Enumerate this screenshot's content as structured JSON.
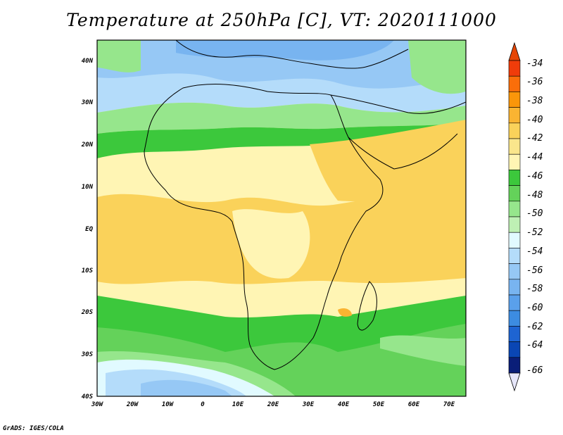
{
  "title": "Temperature at 250hPa [C], VT: 2020111000",
  "credit": "GrADS: IGES/COLA",
  "map": {
    "lon_ticks": [
      "30W",
      "20W",
      "10W",
      "0",
      "10E",
      "20E",
      "30E",
      "40E",
      "50E",
      "60E",
      "70E"
    ],
    "lat_ticks": [
      "40N",
      "30N",
      "20N",
      "10N",
      "EQ",
      "10S",
      "20S",
      "30S",
      "40S"
    ],
    "lon_range": [
      -30,
      75
    ],
    "lat_range": [
      -40,
      45
    ],
    "projection": "latitude-longitude",
    "variable": "temperature",
    "level": "250hPa",
    "units": "C",
    "valid_time": "2020111000"
  },
  "colorbar": {
    "labels": [
      "-34",
      "-36",
      "-38",
      "-40",
      "-42",
      "-44",
      "-46",
      "-48",
      "-50",
      "-52",
      "-54",
      "-56",
      "-58",
      "-60",
      "-62",
      "-64",
      "-66"
    ],
    "colors": [
      "#f03c0a",
      "#fa6e0a",
      "#fa960a",
      "#fab432",
      "#fad25a",
      "#fae68c",
      "#fff5b4",
      "#3cc83c",
      "#64d25a",
      "#96e68c",
      "#bef0b4",
      "#e1faff",
      "#b4dcfa",
      "#96c8f5",
      "#78b4f0",
      "#5aa0eb",
      "#3c8ce1",
      "#1e64d2",
      "#0a46b4",
      "#0a1e78"
    ],
    "end_colors": {
      "top": "#e64605",
      "bottom": "#e6e6fa"
    }
  },
  "field_colors": {
    "ocean_north_cold": "#78b4f0",
    "mid_blue": "#96c8f5",
    "pale_blue": "#b4dcfa",
    "light_green": "#96e68c",
    "green": "#64d25a",
    "dark_green": "#3cc83c",
    "yellow": "#fff5b4",
    "orange_yellow": "#fad25a",
    "orange": "#fab432"
  }
}
